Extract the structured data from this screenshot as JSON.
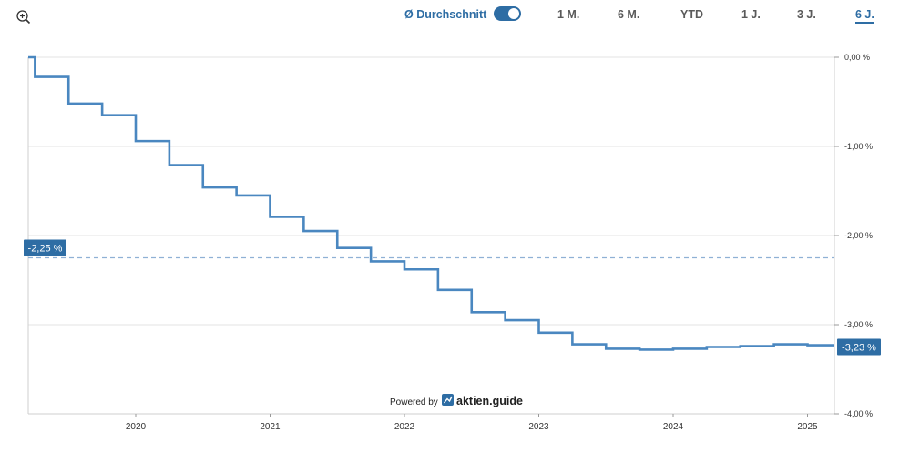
{
  "toolbar": {
    "avg_label": "Ø Durchschnitt",
    "avg_toggle_on": true,
    "ranges": [
      "1 M.",
      "6 M.",
      "YTD",
      "1 J.",
      "3 J.",
      "6 J."
    ],
    "active_range": "6 J."
  },
  "colors": {
    "line": "#4a87c0",
    "accent": "#2e6da4",
    "grid": "#e3e3e3",
    "avg_line": "#8fb1d5"
  },
  "icons": {
    "zoom": "zoom-in-icon",
    "brand": "trend-up-icon"
  },
  "footer": {
    "powered_by": "Powered by",
    "brand": "aktien.guide"
  },
  "chart_data": {
    "type": "line",
    "title": "",
    "xlabel": "",
    "ylabel": "",
    "y_axis_side": "right",
    "ylim": [
      -4.0,
      0.0
    ],
    "xlim": [
      2019.2,
      2025.2
    ],
    "y_ticks": [
      0,
      -1,
      -2,
      -3,
      -4
    ],
    "y_tick_labels": [
      "0,00 %",
      "-1,00 %",
      "-2,00 %",
      "-3,00 %",
      "-4,00 %"
    ],
    "x_ticks": [
      2020,
      2021,
      2022,
      2023,
      2024,
      2025
    ],
    "x_tick_labels": [
      "2020",
      "2021",
      "2022",
      "2023",
      "2024",
      "2025"
    ],
    "grid": true,
    "series": [
      {
        "step": true,
        "x": [
          2019.2,
          2019.25,
          2019.5,
          2019.75,
          2020.0,
          2020.25,
          2020.5,
          2020.75,
          2021.0,
          2021.25,
          2021.5,
          2021.75,
          2022.0,
          2022.25,
          2022.5,
          2022.75,
          2023.0,
          2023.25,
          2023.5,
          2023.75,
          2024.0,
          2024.25,
          2024.5,
          2024.75,
          2025.0,
          2025.2
        ],
        "y": [
          0.0,
          -0.22,
          -0.52,
          -0.65,
          -0.94,
          -1.21,
          -1.46,
          -1.55,
          -1.79,
          -1.95,
          -2.14,
          -2.29,
          -2.38,
          -2.61,
          -2.86,
          -2.95,
          -3.09,
          -3.22,
          -3.27,
          -3.28,
          -3.27,
          -3.25,
          -3.24,
          -3.22,
          -3.23,
          -3.23
        ]
      }
    ],
    "average": {
      "value": -2.25,
      "label": "-2,25 %"
    },
    "last_value": {
      "value": -3.23,
      "label": "-3,23 %"
    }
  }
}
